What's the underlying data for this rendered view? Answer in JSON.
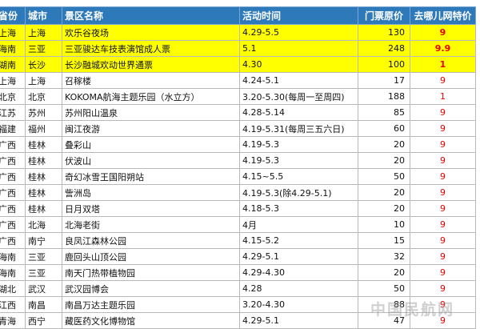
{
  "headers": [
    "省份",
    "城市",
    "景区名称",
    "活动时间",
    "门票原价",
    "去哪儿网特价"
  ],
  "rows": [
    {
      "province": "上海",
      "city": "上海",
      "name": "欢乐谷夜场",
      "time": "4.29-5.5",
      "price": "130",
      "special": "9",
      "highlight": true
    },
    {
      "province": "海南",
      "city": "三亚",
      "name": "三亚骏达车技表演馆成人票",
      "time": "5.1",
      "price": "248",
      "special": "9.9",
      "highlight": true
    },
    {
      "province": "湖南",
      "city": "长沙",
      "name": "长沙融城欢动世界通票",
      "time": "4.30",
      "price": "100",
      "special": "1",
      "highlight": true
    },
    {
      "province": "上海",
      "city": "上海",
      "name": "召稼楼",
      "time": "4.24-5.1",
      "price": "17",
      "special": "9",
      "highlight": false
    },
    {
      "province": "北京",
      "city": "北京",
      "name": "KOKOMA航海主题乐园（水立方）",
      "time": "3.20-5.30(每周一至周四)",
      "price": "188",
      "special": "1",
      "highlight": false
    },
    {
      "province": "江苏",
      "city": "苏州",
      "name": "苏州阳山温泉",
      "time": "4.28-5.14",
      "price": "85",
      "special": "9",
      "highlight": false
    },
    {
      "province": "福建",
      "city": "福州",
      "name": "闽江夜游",
      "time": "4.19-5.31(每周三五六日)",
      "price": "60",
      "special": "9",
      "highlight": false
    },
    {
      "province": "广西",
      "city": "桂林",
      "name": "叠彩山",
      "time": "4.19-5.3",
      "price": "20",
      "special": "9",
      "highlight": false
    },
    {
      "province": "广西",
      "city": "桂林",
      "name": "伏波山",
      "time": "4.19-5.3",
      "price": "20",
      "special": "9",
      "highlight": false
    },
    {
      "province": "广西",
      "city": "桂林",
      "name": "奇幻冰雪王国阳朔站",
      "time": "4.15~5.5",
      "price": "50",
      "special": "9",
      "highlight": false
    },
    {
      "province": "广西",
      "city": "桂林",
      "name": "訾洲岛",
      "time": "4.19-5.3(除4.29-5.1)",
      "price": "20",
      "special": "9",
      "highlight": false
    },
    {
      "province": "广西",
      "city": "桂林",
      "name": "日月双塔",
      "time": "4.18-5.3",
      "price": "20",
      "special": "9",
      "highlight": false
    },
    {
      "province": "广西",
      "city": "北海",
      "name": "北海老街",
      "time": "4月",
      "price": "10",
      "special": "9",
      "highlight": false
    },
    {
      "province": "广西",
      "city": "南宁",
      "name": "良凤江森林公园",
      "time": "4.15-5.2",
      "price": "15",
      "special": "9",
      "highlight": false
    },
    {
      "province": "海南",
      "city": "三亚",
      "name": "鹿回头山顶公园",
      "time": "4.29-5.1",
      "price": "32",
      "special": "9",
      "highlight": false
    },
    {
      "province": "海南",
      "city": "三亚",
      "name": "南天门热带植物园",
      "time": "4.29-4.30",
      "price": "20",
      "special": "9",
      "highlight": false
    },
    {
      "province": "湖北",
      "city": "武汉",
      "name": "武汉园博会",
      "time": "4.28",
      "price": "50",
      "special": "9",
      "highlight": false
    },
    {
      "province": "江西",
      "city": "南昌",
      "name": "南昌万达主题乐园",
      "time": "3.20-4.30",
      "price": "88",
      "special": "9",
      "highlight": false
    },
    {
      "province": "青海",
      "city": "西宁",
      "name": "藏医药文化博物馆",
      "time": "4.29-5.1",
      "price": "47",
      "special": "9",
      "highlight": false
    }
  ],
  "watermark": "中国民航网"
}
